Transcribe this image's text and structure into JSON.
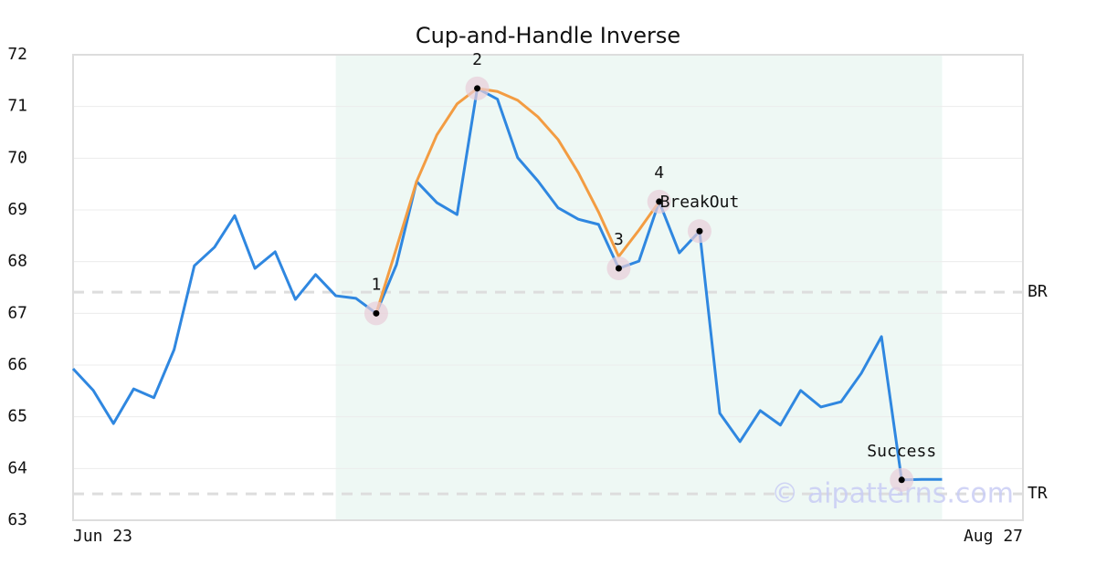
{
  "chart_data": {
    "type": "line",
    "title": "Cup-and-Handle Inverse",
    "categories": [
      "Jun 23",
      null,
      null,
      null,
      null,
      null,
      null,
      null,
      null,
      null,
      null,
      null,
      null,
      null,
      null,
      null,
      null,
      null,
      null,
      null,
      null,
      null,
      null,
      null,
      null,
      null,
      null,
      null,
      null,
      null,
      null,
      null,
      null,
      null,
      null,
      null,
      null,
      null,
      null,
      null,
      null,
      null,
      null,
      null,
      null,
      null,
      null,
      "Aug 27"
    ],
    "series": [
      {
        "color": "#2f87e0",
        "values": [
          65.93,
          65.51,
          64.87,
          65.54,
          65.37,
          66.3,
          67.92,
          68.28,
          68.89,
          67.87,
          68.19,
          67.27,
          67.75,
          67.34,
          67.29,
          67.0,
          67.94,
          69.55,
          69.14,
          68.91,
          71.35,
          71.14,
          70.01,
          69.56,
          69.04,
          68.82,
          68.72,
          67.87,
          68.01,
          69.16,
          68.17,
          68.59,
          65.07,
          64.52,
          65.12,
          64.84,
          65.51,
          65.19,
          65.29,
          65.84,
          66.55,
          63.78,
          63.79,
          63.79,
          null,
          null,
          null,
          null
        ]
      },
      {
        "color": "#f39c42",
        "values": [
          null,
          null,
          null,
          null,
          null,
          null,
          null,
          null,
          null,
          null,
          null,
          null,
          null,
          null,
          null,
          67.0,
          68.26,
          69.55,
          70.45,
          71.05,
          71.35,
          71.29,
          71.12,
          70.8,
          70.36,
          69.72,
          68.96,
          68.1,
          68.61,
          69.16,
          null,
          null,
          null,
          null,
          null,
          null,
          null,
          null,
          null,
          null,
          null,
          null,
          null,
          null,
          null,
          null,
          null,
          null
        ]
      }
    ],
    "points": [
      {
        "label": "1",
        "index": 15
      },
      {
        "label": "2",
        "index": 20
      },
      {
        "label": "3",
        "index": 27
      },
      {
        "label": "4",
        "index": 29
      },
      {
        "label": "BreakOut",
        "index": 31
      },
      {
        "label": "Success",
        "index": 41
      }
    ],
    "hlines": [
      {
        "label": "BR",
        "value": 67.41
      },
      {
        "label": "TR",
        "value": 63.51
      }
    ],
    "highlight": {
      "from": 13,
      "to": 43,
      "color": "#eef8f4"
    },
    "watermark": "© aipatterns.com",
    "ylim": [
      63,
      72
    ],
    "yticks": [
      63,
      64,
      65,
      66,
      67,
      68,
      69,
      70,
      71,
      72
    ],
    "grid": true
  }
}
